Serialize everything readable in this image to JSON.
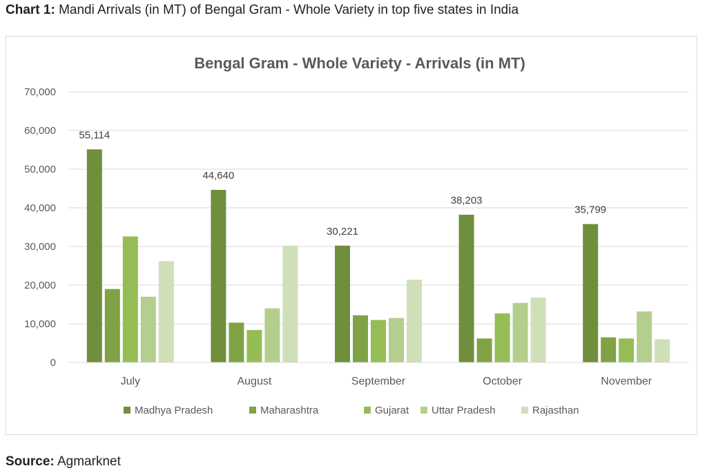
{
  "caption": {
    "label": "Chart 1:",
    "text": "Mandi Arrivals (in MT) of Bengal Gram - Whole Variety in top five states in India"
  },
  "source": {
    "label": "Source:",
    "text": "Agmarknet"
  },
  "chart_data": {
    "type": "bar",
    "title": "Bengal Gram - Whole Variety - Arrivals (in MT)",
    "xlabel": "",
    "ylabel": "",
    "ylim": [
      0,
      70000
    ],
    "yticks": [
      0,
      10000,
      20000,
      30000,
      40000,
      50000,
      60000,
      70000
    ],
    "ytick_labels": [
      "0",
      "10,000",
      "20,000",
      "30,000",
      "40,000",
      "50,000",
      "60,000",
      "70,000"
    ],
    "grid": true,
    "legend_position": "bottom",
    "categories": [
      "July",
      "August",
      "September",
      "October",
      "November"
    ],
    "series": [
      {
        "name": "Madhya Pradesh",
        "color": "#6f8f3d",
        "values": [
          55114,
          44640,
          30221,
          38203,
          35799
        ],
        "labels": [
          "55,114",
          "44,640",
          "30,221",
          "38,203",
          "35,799"
        ]
      },
      {
        "name": "Maharashtra",
        "color": "#7fa344",
        "values": [
          19000,
          10300,
          12200,
          6200,
          6500
        ]
      },
      {
        "name": "Gujarat",
        "color": "#96bd55",
        "values": [
          32600,
          8400,
          11000,
          12700,
          6200
        ]
      },
      {
        "name": "Uttar Pradesh",
        "color": "#b4cf8d",
        "values": [
          17000,
          14000,
          11500,
          15400,
          13200
        ]
      },
      {
        "name": "Rajasthan",
        "color": "#cfe0b8",
        "values": [
          26200,
          30200,
          21400,
          16800,
          6000
        ]
      }
    ]
  }
}
